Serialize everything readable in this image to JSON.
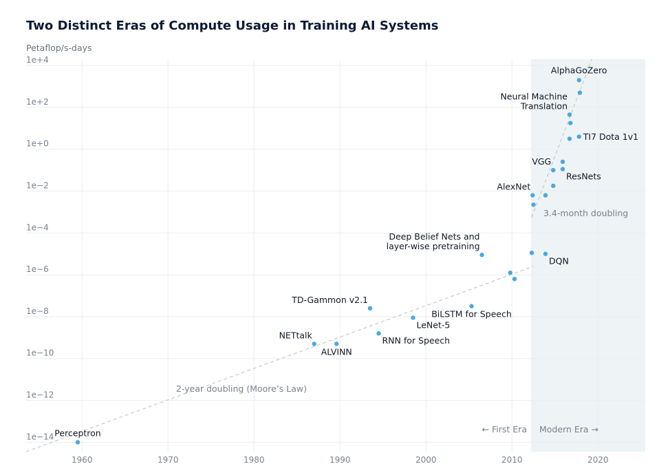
{
  "title": "Two Distinct Eras of Compute Usage in Training AI Systems",
  "colors": {
    "point": "#4aa8de",
    "trend": "#c9ccd3",
    "modern_shade": "#eef3f5",
    "grid": "#eceef1"
  },
  "chart_data": {
    "type": "scatter",
    "title": "Two Distinct Eras of Compute Usage in Training AI Systems",
    "ylabel": "Petaflop/s-days",
    "xlabel": "",
    "yscale": "log10",
    "xlim": [
      1953.5,
      2025.5
    ],
    "ylim_exp": [
      -14.45,
      4.3
    ],
    "x_ticks": [
      {
        "value": 1960,
        "label": "1960"
      },
      {
        "value": 1970,
        "label": "1970"
      },
      {
        "value": 1980,
        "label": "1980"
      },
      {
        "value": 1990,
        "label": "1990"
      },
      {
        "value": 2000,
        "label": "2000"
      },
      {
        "value": 2010,
        "label": "2010"
      },
      {
        "value": 2020,
        "label": "2020"
      }
    ],
    "y_ticks": [
      {
        "exp": 4,
        "label": "1e+4"
      },
      {
        "exp": 2,
        "label": "1e+2"
      },
      {
        "exp": 0,
        "label": "1e+0"
      },
      {
        "exp": -2,
        "label": "1e−2"
      },
      {
        "exp": -4,
        "label": "1e−4"
      },
      {
        "exp": -6,
        "label": "1e−6"
      },
      {
        "exp": -8,
        "label": "1e−8"
      },
      {
        "exp": -10,
        "label": "1e−10"
      },
      {
        "exp": -12,
        "label": "1e−12"
      },
      {
        "exp": -14,
        "label": "1e−14"
      }
    ],
    "modern_era_start": 2012.2,
    "points": [
      {
        "year": 1959.5,
        "exp": -14.0,
        "label": "Perceptron",
        "label_pos": "above"
      },
      {
        "year": 1987.0,
        "exp": -9.3,
        "label": "NETtalk",
        "label_pos": "left-above"
      },
      {
        "year": 1989.6,
        "exp": -9.3,
        "label": "ALVINN",
        "label_pos": "below"
      },
      {
        "year": 1993.5,
        "exp": -7.6,
        "label": "TD-Gammon v2.1",
        "label_pos": "left-above"
      },
      {
        "year": 1994.5,
        "exp": -8.8,
        "label": "RNN for Speech",
        "label_pos": "right-below"
      },
      {
        "year": 1998.5,
        "exp": -8.05,
        "label": "LeNet-5",
        "label_pos": "right-below"
      },
      {
        "year": 2005.3,
        "exp": -7.5,
        "label": "BiLSTM for Speech",
        "label_pos": "below"
      },
      {
        "year": 2006.5,
        "exp": -5.05,
        "label": "Deep Belief Nets and\nlayer-wise pretraining",
        "label_pos": "left-above"
      },
      {
        "year": 2009.8,
        "exp": -5.9,
        "label": "",
        "label_pos": "none"
      },
      {
        "year": 2010.3,
        "exp": -6.2,
        "label": "",
        "label_pos": "none"
      },
      {
        "year": 2012.3,
        "exp": -4.95,
        "label": "",
        "label_pos": "none"
      },
      {
        "year": 2012.4,
        "exp": -2.2,
        "label": "AlexNet",
        "label_pos": "left-above"
      },
      {
        "year": 2012.5,
        "exp": -2.65,
        "label": "",
        "label_pos": "none"
      },
      {
        "year": 2013.9,
        "exp": -5.0,
        "label": "DQN",
        "label_pos": "right-below"
      },
      {
        "year": 2013.9,
        "exp": -2.2,
        "label": "",
        "label_pos": "none"
      },
      {
        "year": 2014.8,
        "exp": -1.75,
        "label": "",
        "label_pos": "none"
      },
      {
        "year": 2014.8,
        "exp": -1.0,
        "label": "VGG",
        "label_pos": "left-above"
      },
      {
        "year": 2015.9,
        "exp": -0.95,
        "label": "ResNets",
        "label_pos": "right-below"
      },
      {
        "year": 2015.9,
        "exp": -0.6,
        "label": "",
        "label_pos": "none"
      },
      {
        "year": 2016.7,
        "exp": 0.5,
        "label": "",
        "label_pos": "none"
      },
      {
        "year": 2016.8,
        "exp": 1.25,
        "label": "",
        "label_pos": "none"
      },
      {
        "year": 2016.7,
        "exp": 1.65,
        "label": "Neural Machine\nTranslation",
        "label_pos": "left-above"
      },
      {
        "year": 2017.8,
        "exp": 0.6,
        "label": "TI7 Dota 1v1",
        "label_pos": "right"
      },
      {
        "year": 2017.9,
        "exp": 2.7,
        "label": "",
        "label_pos": "none"
      },
      {
        "year": 2017.8,
        "exp": 3.3,
        "label": "AlphaGoZero",
        "label_pos": "above"
      }
    ],
    "trends": [
      {
        "name": "2-year doubling (Moore’s Law)",
        "start": [
          1953.5,
          -14.45
        ],
        "end": [
          2012.5,
          -5.6
        ]
      },
      {
        "name": "3.4-month doubling",
        "start": [
          2012.3,
          -3.25
        ],
        "end": [
          2019.3,
          4.3
        ]
      }
    ],
    "annotations": {
      "moore": "2-year doubling (Moore’s Law)",
      "modern": "3.4-month doubling",
      "first_era": "← First Era",
      "modern_era": "Modern Era →"
    }
  }
}
